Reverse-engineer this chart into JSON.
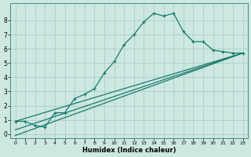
{
  "xlabel": "Humidex (Indice chaleur)",
  "background_color": "#cce8e0",
  "grid_color": "#aacfc8",
  "line_color": "#1a7a6e",
  "xlim": [
    -0.5,
    23.5
  ],
  "ylim": [
    -0.3,
    9.2
  ],
  "xticks": [
    0,
    1,
    2,
    3,
    4,
    5,
    6,
    7,
    8,
    9,
    10,
    11,
    12,
    13,
    14,
    15,
    16,
    17,
    18,
    19,
    20,
    21,
    22,
    23
  ],
  "yticks": [
    0,
    1,
    2,
    3,
    4,
    5,
    6,
    7,
    8
  ],
  "series1_x": [
    0,
    1,
    2,
    3,
    4,
    5,
    6,
    7,
    8,
    9,
    10,
    11,
    12,
    13,
    14,
    15,
    16,
    17,
    18,
    19,
    20,
    21,
    22,
    23
  ],
  "series1_y": [
    0.9,
    0.9,
    0.6,
    0.5,
    1.5,
    1.5,
    2.5,
    2.8,
    3.2,
    4.3,
    5.1,
    6.3,
    7.0,
    7.9,
    8.5,
    8.3,
    8.5,
    7.2,
    6.5,
    6.5,
    5.9,
    5.8,
    5.7,
    5.7
  ],
  "series2_x": [
    0,
    23
  ],
  "series2_y": [
    0.9,
    5.7
  ],
  "series3_x": [
    0,
    23
  ],
  "series3_y": [
    0.3,
    5.7
  ],
  "series4_x": [
    0,
    23
  ],
  "series4_y": [
    -0.1,
    5.7
  ]
}
